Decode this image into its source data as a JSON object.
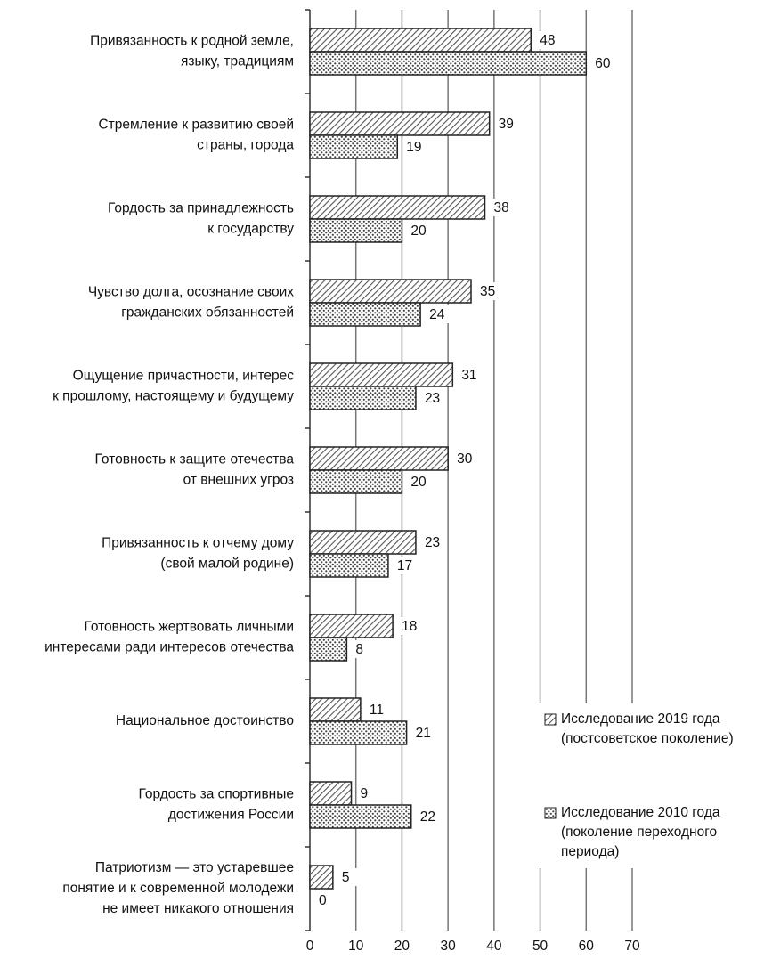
{
  "chart_data": {
    "type": "bar",
    "orientation": "horizontal",
    "categories": [
      "Привязанность к родной земле,\nязыку, традициям",
      "Стремление к развитию своей\nстраны, города",
      "Гордость за принадлежность\nк государству",
      "Чувство долга, осознание своих\nгражданских обязанностей",
      "Ощущение причастности, интерес\nк прошлому, настоящему и будущему",
      "Готовность к защите отечества\nот внешних угроз",
      "Привязанность к отчему дому\n(свой малой родине)",
      "Готовность жертвовать личными\nинтересами ради интересов отечества",
      "Национальное достоинство",
      "Гордость за спортивные\nдостижения России",
      "Патриотизм — это устаревшее\nпонятие и к современной молодежи\nне имеет никакого отношения"
    ],
    "series": [
      {
        "name": "Исследование 2019 года\n(постсоветское поколение)",
        "color": "#555555",
        "pattern": "hatch",
        "values": [
          48,
          39,
          38,
          35,
          31,
          30,
          23,
          18,
          11,
          9,
          5
        ]
      },
      {
        "name": "Исследование 2010 года\n(поколение переходного\nпериода)",
        "color": "#555555",
        "pattern": "dots",
        "values": [
          60,
          19,
          20,
          24,
          23,
          20,
          17,
          8,
          21,
          22,
          0
        ]
      }
    ],
    "xlim": [
      0,
      70
    ],
    "xticks": [
      0,
      10,
      20,
      30,
      40,
      50,
      60,
      70
    ],
    "grid": true,
    "legend": "lower right"
  }
}
